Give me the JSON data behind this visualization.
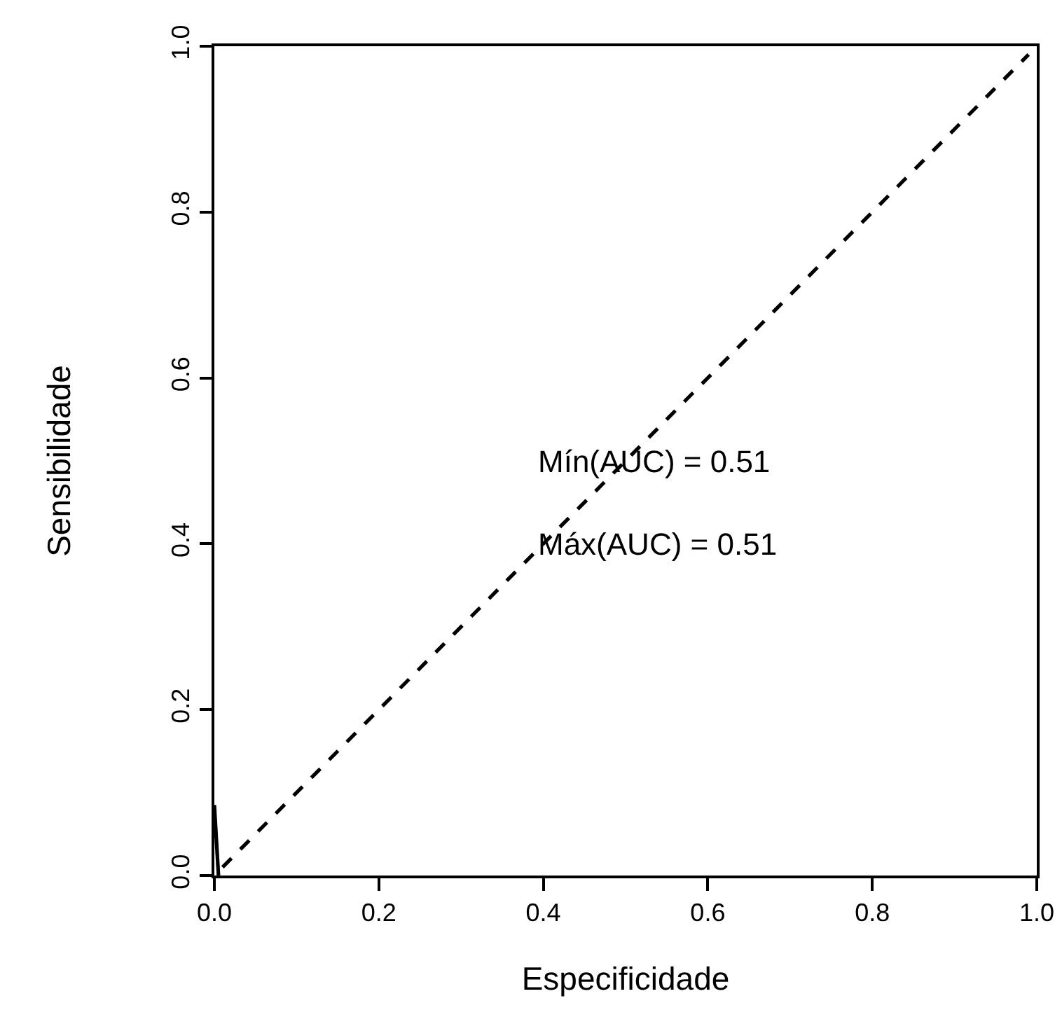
{
  "chart_data": {
    "type": "line",
    "xlabel": "Especificidade",
    "ylabel": "Sensibilidade",
    "xlim": [
      0,
      1
    ],
    "ylim": [
      0,
      1
    ],
    "xticks": [
      {
        "value": 0,
        "label": "0.0"
      },
      {
        "value": 0.2,
        "label": "0.2"
      },
      {
        "value": 0.4,
        "label": "0.4"
      },
      {
        "value": 0.6,
        "label": "0.6"
      },
      {
        "value": 0.8,
        "label": "0.8"
      },
      {
        "value": 1,
        "label": "1.0"
      }
    ],
    "yticks": [
      {
        "value": 0,
        "label": "0.0"
      },
      {
        "value": 0.2,
        "label": "0.2"
      },
      {
        "value": 0.4,
        "label": "0.4"
      },
      {
        "value": 0.6,
        "label": "0.6"
      },
      {
        "value": 0.8,
        "label": "0.8"
      },
      {
        "value": 1,
        "label": "1.0"
      }
    ],
    "marker": "none",
    "series": [
      {
        "color": "#000000",
        "x": [
          0,
          0.005
        ],
        "values": [
          0.085,
          0
        ],
        "line_style": "solid"
      },
      {
        "color": "#000000",
        "x": [
          0.01,
          0.99
        ],
        "values": [
          0.01,
          0.99
        ],
        "line_style": "dashed"
      }
    ],
    "annotations": [
      "Mín(AUC) = 0.51",
      "Máx(AUC) = 0.51"
    ]
  }
}
